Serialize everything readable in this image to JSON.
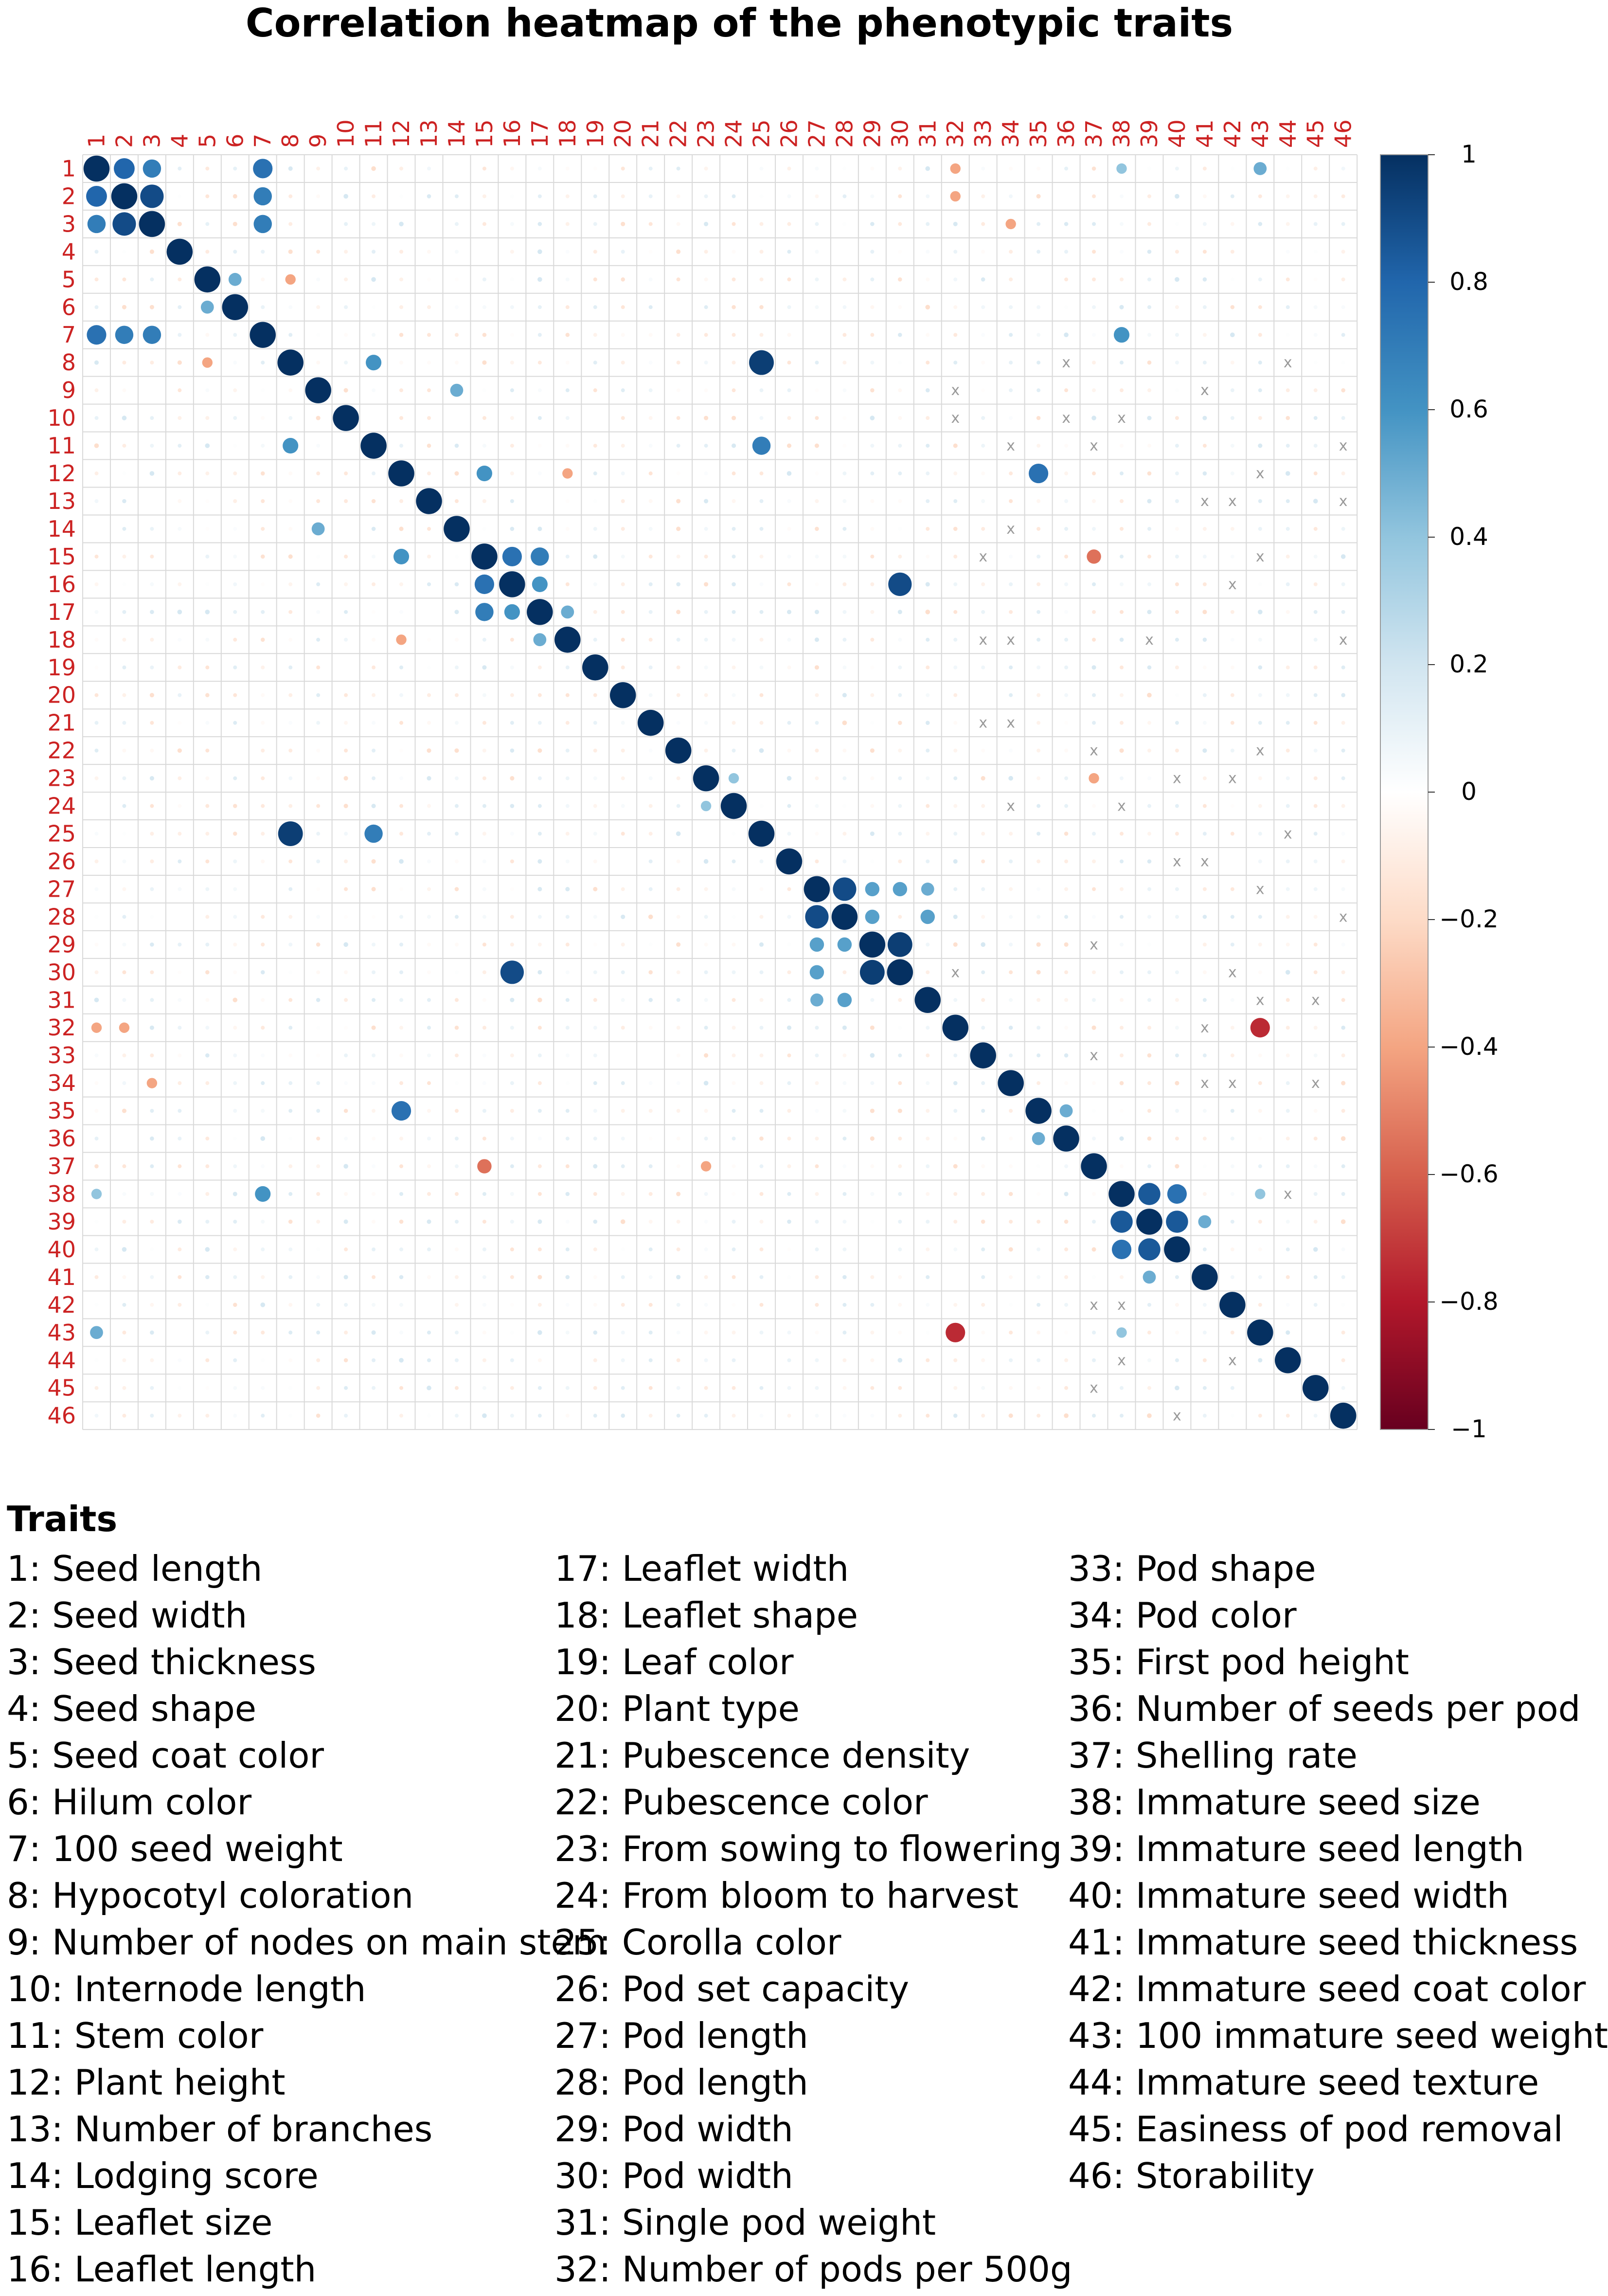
{
  "chart_data": {
    "type": "heatmap",
    "title": "Correlation heatmap of the phenotypic traits",
    "variables": [
      "1",
      "2",
      "3",
      "4",
      "5",
      "6",
      "7",
      "8",
      "9",
      "10",
      "11",
      "12",
      "13",
      "14",
      "15",
      "16",
      "17",
      "18",
      "19",
      "20",
      "21",
      "22",
      "23",
      "24",
      "25",
      "26",
      "27",
      "28",
      "29",
      "30",
      "31",
      "32",
      "33",
      "34",
      "35",
      "36",
      "37",
      "38",
      "39",
      "40",
      "41",
      "42",
      "43",
      "44",
      "45",
      "46"
    ],
    "value_range": [
      -1,
      1
    ],
    "colorbar_ticks": [
      "1",
      "0.8",
      "0.6",
      "0.4",
      "0.2",
      "0",
      "−0.2",
      "−0.4",
      "−0.6",
      "−0.8",
      "−1"
    ],
    "colorbar_tick_values": [
      1,
      0.8,
      0.6,
      0.4,
      0.2,
      0,
      -0.2,
      -0.4,
      -0.6,
      -0.8,
      -1
    ],
    "colorscale": [
      "#67001f",
      "#b2182b",
      "#d6604d",
      "#f4a582",
      "#fddbc7",
      "#ffffff",
      "#d1e5f0",
      "#92c5de",
      "#4393c3",
      "#2166ac",
      "#053061"
    ],
    "strong_correlations": [
      {
        "a": 1,
        "b": 2,
        "r": 0.8
      },
      {
        "a": 1,
        "b": 3,
        "r": 0.7
      },
      {
        "a": 2,
        "b": 3,
        "r": 0.9
      },
      {
        "a": 1,
        "b": 7,
        "r": 0.75
      },
      {
        "a": 2,
        "b": 7,
        "r": 0.7
      },
      {
        "a": 3,
        "b": 7,
        "r": 0.7
      },
      {
        "a": 5,
        "b": 6,
        "r": 0.5
      },
      {
        "a": 5,
        "b": 8,
        "r": -0.4
      },
      {
        "a": 8,
        "b": 11,
        "r": 0.6
      },
      {
        "a": 8,
        "b": 25,
        "r": 0.95
      },
      {
        "a": 11,
        "b": 25,
        "r": 0.7
      },
      {
        "a": 9,
        "b": 14,
        "r": 0.5
      },
      {
        "a": 12,
        "b": 15,
        "r": 0.6
      },
      {
        "a": 12,
        "b": 35,
        "r": 0.75
      },
      {
        "a": 15,
        "b": 16,
        "r": 0.75
      },
      {
        "a": 15,
        "b": 17,
        "r": 0.7
      },
      {
        "a": 16,
        "b": 17,
        "r": 0.6
      },
      {
        "a": 16,
        "b": 30,
        "r": 0.9
      },
      {
        "a": 15,
        "b": 37,
        "r": -0.55
      },
      {
        "a": 12,
        "b": 18,
        "r": -0.4
      },
      {
        "a": 17,
        "b": 18,
        "r": 0.5
      },
      {
        "a": 27,
        "b": 28,
        "r": 0.9
      },
      {
        "a": 27,
        "b": 29,
        "r": 0.55
      },
      {
        "a": 27,
        "b": 30,
        "r": 0.55
      },
      {
        "a": 28,
        "b": 29,
        "r": 0.55
      },
      {
        "a": 29,
        "b": 30,
        "r": 0.95
      },
      {
        "a": 27,
        "b": 31,
        "r": 0.5
      },
      {
        "a": 28,
        "b": 31,
        "r": 0.55
      },
      {
        "a": 32,
        "b": 43,
        "r": -0.75
      },
      {
        "a": 1,
        "b": 32,
        "r": -0.4
      },
      {
        "a": 2,
        "b": 32,
        "r": -0.4
      },
      {
        "a": 35,
        "b": 36,
        "r": 0.5
      },
      {
        "a": 23,
        "b": 24,
        "r": 0.4
      },
      {
        "a": 38,
        "b": 39,
        "r": 0.85
      },
      {
        "a": 38,
        "b": 40,
        "r": 0.75
      },
      {
        "a": 39,
        "b": 40,
        "r": 0.85
      },
      {
        "a": 39,
        "b": 41,
        "r": 0.5
      },
      {
        "a": 38,
        "b": 43,
        "r": 0.4
      },
      {
        "a": 1,
        "b": 38,
        "r": 0.4
      },
      {
        "a": 1,
        "b": 43,
        "r": 0.5
      },
      {
        "a": 7,
        "b": 38,
        "r": 0.6
      },
      {
        "a": 3,
        "b": 34,
        "r": -0.4
      },
      {
        "a": 23,
        "b": 37,
        "r": -0.4
      }
    ],
    "not_significant_marker": "x"
  },
  "legend": {
    "heading": "Traits",
    "columns": [
      [
        "1: Seed length",
        "2: Seed width",
        "3: Seed thickness",
        "4: Seed shape",
        "5: Seed coat color",
        "6: Hilum color",
        "7: 100 seed weight",
        "8: Hypocotyl coloration",
        "9: Number of nodes on main stem",
        "10: Internode length",
        "11: Stem color",
        "12: Plant height",
        "13: Number of branches",
        "14: Lodging score",
        "15: Leaflet size",
        "16: Leaflet length"
      ],
      [
        "17: Leaflet width",
        "18: Leaflet shape",
        "19: Leaf color",
        "20: Plant type",
        "21: Pubescence density",
        "22: Pubescence color",
        "23: From sowing to flowering",
        "24: From bloom to harvest",
        "25: Corolla color",
        "26: Pod set capacity",
        "27: Pod length",
        "28: Pod length",
        "29: Pod width",
        "30: Pod width",
        "31: Single pod weight",
        "32: Number of pods per 500g"
      ],
      [
        "33: Pod shape",
        "34: Pod color",
        "35: First pod height",
        "36: Number of seeds per pod",
        "37: Shelling rate",
        "38: Immature seed size",
        "39: Immature seed length",
        "40: Immature seed width",
        "41: Immature seed thickness",
        "42: Immature seed coat color",
        "43: 100 immature seed weight",
        "44: Immature seed texture",
        "45: Easiness of pod removal",
        "46: Storability"
      ]
    ]
  }
}
